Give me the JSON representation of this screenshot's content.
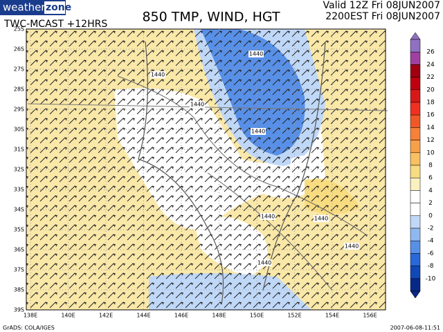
{
  "header": {
    "logo_left": "weather",
    "logo_right": "zone",
    "title": "850 TMP, WIND, HGT",
    "subtitle": "TWC-MCAST  +12HRS",
    "valid_utc": "Valid 12Z Fri 08JUN2007",
    "valid_local": "2200EST Fri 08JUN2007"
  },
  "map": {
    "lat_labels": [
      "25S",
      "26S",
      "27S",
      "28S",
      "29S",
      "30S",
      "31S",
      "32S",
      "33S",
      "34S",
      "35S",
      "36S",
      "37S",
      "38S",
      "39S"
    ],
    "lon_labels": [
      "138E",
      "140E",
      "142E",
      "144E",
      "146E",
      "148E",
      "150E",
      "152E",
      "154E",
      "156E"
    ],
    "contour_labels": [
      "1440",
      "1440",
      "1440",
      "1440",
      "1440",
      "1440",
      "1440",
      "1440"
    ]
  },
  "colorbar": {
    "labels": [
      "26",
      "24",
      "22",
      "20",
      "18",
      "16",
      "14",
      "12",
      "10",
      "8",
      "6",
      "4",
      "2",
      "0",
      "-2",
      "-4",
      "-6",
      "-8",
      "-10"
    ],
    "colors": [
      "#9070c0",
      "#a040a0",
      "#a00010",
      "#c00010",
      "#d81818",
      "#f03020",
      "#f05828",
      "#f88038",
      "#f8a048",
      "#f8c060",
      "#f8dc80",
      "#faf0c0",
      "#ffffff",
      "#ffffff",
      "#c0d8f8",
      "#90b8f0",
      "#5890e8",
      "#2868d8",
      "#1048b8",
      "#082888"
    ]
  },
  "footer": {
    "credit": "GrADS: COLA/IGES",
    "timestamp": "2007-06-08-11:51"
  }
}
